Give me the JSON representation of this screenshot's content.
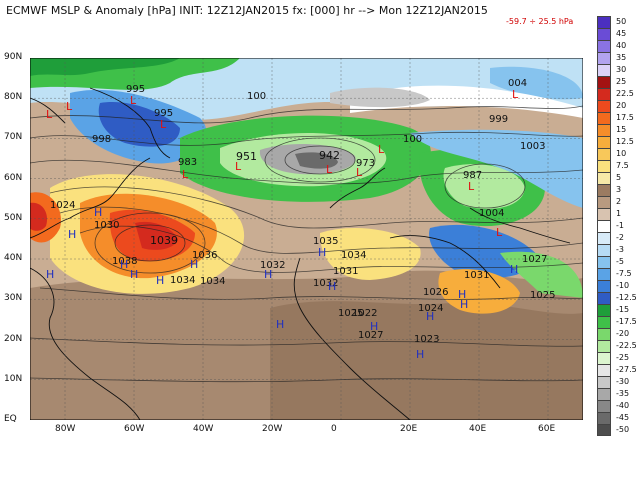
{
  "title": "ECMWF MSLP & Anomaly [hPa] INIT: 12Z12JAN2015 fx: [000] hr --> Mon 12Z12JAN2015",
  "range_text": "-59.7 ÷ 25.5 hPa",
  "lat_labels": [
    "90N",
    "80N",
    "70N",
    "60N",
    "50N",
    "40N",
    "30N",
    "20N",
    "10N",
    "EQ"
  ],
  "lon_labels": [
    "80W",
    "60W",
    "40W",
    "20W",
    "0",
    "20E",
    "40E",
    "60E"
  ],
  "colorbar": [
    {
      "label": "50",
      "color": "#4b2fc0"
    },
    {
      "label": "45",
      "color": "#6a4cd6"
    },
    {
      "label": "40",
      "color": "#8a73e3"
    },
    {
      "label": "35",
      "color": "#b2a3ef"
    },
    {
      "label": "30",
      "color": "#dcd2f8"
    },
    {
      "label": "25",
      "color": "#a31212"
    },
    {
      "label": "22.5",
      "color": "#d42a1e"
    },
    {
      "label": "20",
      "color": "#ec4a1e"
    },
    {
      "label": "17.5",
      "color": "#f36a1e"
    },
    {
      "label": "15",
      "color": "#f58d2a"
    },
    {
      "label": "12.5",
      "color": "#f7ad3c"
    },
    {
      "label": "10",
      "color": "#f8c85a"
    },
    {
      "label": "7.5",
      "color": "#fae17e"
    },
    {
      "label": "5",
      "color": "#f6e9a8"
    },
    {
      "label": "3",
      "color": "#9b7b61"
    },
    {
      "label": "2",
      "color": "#b89a80"
    },
    {
      "label": "1",
      "color": "#d8c3b0"
    },
    {
      "label": "-1",
      "color": "#ffffff"
    },
    {
      "label": "-2",
      "color": "#d8ebf8"
    },
    {
      "label": "-3",
      "color": "#b6dbf4"
    },
    {
      "label": "-5",
      "color": "#86c3ee"
    },
    {
      "label": "-7.5",
      "color": "#5aa3e6"
    },
    {
      "label": "-10",
      "color": "#3b7fd8"
    },
    {
      "label": "-12.5",
      "color": "#2f5cc4"
    },
    {
      "label": "-15",
      "color": "#1f9e3a"
    },
    {
      "label": "-17.5",
      "color": "#3fc049"
    },
    {
      "label": "-20",
      "color": "#7ad86c"
    },
    {
      "label": "-22.5",
      "color": "#b2ea9f"
    },
    {
      "label": "-25",
      "color": "#dcf5cf"
    },
    {
      "label": "-27.5",
      "color": "#e6e6e6"
    },
    {
      "label": "-30",
      "color": "#c8c8c8"
    },
    {
      "label": "-35",
      "color": "#a8a8a8"
    },
    {
      "label": "-40",
      "color": "#888888"
    },
    {
      "label": "-45",
      "color": "#6a6a6a"
    },
    {
      "label": "-50",
      "color": "#4d4d4d"
    }
  ],
  "pressure_labels": [
    {
      "text": "995"
    },
    {
      "text": "995"
    },
    {
      "text": "998"
    },
    {
      "text": "983"
    },
    {
      "text": "100"
    },
    {
      "text": "951"
    },
    {
      "text": "942"
    },
    {
      "text": "973"
    },
    {
      "text": "100"
    },
    {
      "text": "004"
    },
    {
      "text": "999"
    },
    {
      "text": "1003"
    },
    {
      "text": "987"
    },
    {
      "text": "1004"
    },
    {
      "text": "1024"
    },
    {
      "text": "1030"
    },
    {
      "text": "1039"
    },
    {
      "text": "1038"
    },
    {
      "text": "1036"
    },
    {
      "text": "1034"
    },
    {
      "text": "1034"
    },
    {
      "text": "1032"
    },
    {
      "text": "1035"
    },
    {
      "text": "1034"
    },
    {
      "text": "1031"
    },
    {
      "text": "1032"
    },
    {
      "text": "1025"
    },
    {
      "text": "1026"
    },
    {
      "text": "1024"
    },
    {
      "text": "1022"
    },
    {
      "text": "1027"
    },
    {
      "text": "1023"
    },
    {
      "text": "1031"
    },
    {
      "text": "1027"
    },
    {
      "text": "1025"
    }
  ],
  "center_markers": [
    {
      "type": "L"
    },
    {
      "type": "L"
    },
    {
      "type": "L"
    },
    {
      "type": "L"
    },
    {
      "type": "L"
    },
    {
      "type": "L"
    },
    {
      "type": "L"
    },
    {
      "type": "L"
    },
    {
      "type": "L"
    },
    {
      "type": "L"
    },
    {
      "type": "L"
    },
    {
      "type": "L"
    },
    {
      "type": "H"
    },
    {
      "type": "H"
    },
    {
      "type": "H"
    },
    {
      "type": "H"
    },
    {
      "type": "H"
    },
    {
      "type": "H"
    },
    {
      "type": "H"
    },
    {
      "type": "H"
    },
    {
      "type": "H"
    },
    {
      "type": "H"
    },
    {
      "type": "H"
    },
    {
      "type": "H"
    },
    {
      "type": "H"
    },
    {
      "type": "H"
    },
    {
      "type": "H"
    },
    {
      "type": "H"
    },
    {
      "type": "H"
    }
  ]
}
